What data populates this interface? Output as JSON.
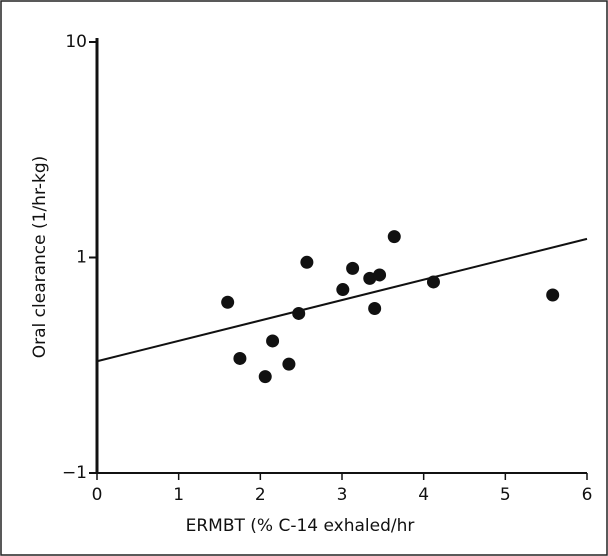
{
  "chart_data": {
    "type": "scatter",
    "x_label": "ERMBT (% C-14 exhaled/hr",
    "y_label": "Oral clearance (1/hr-kg)",
    "x": [
      1.6,
      1.75,
      2.06,
      2.15,
      2.35,
      2.47,
      2.57,
      3.01,
      3.13,
      3.34,
      3.4,
      3.46,
      3.64,
      4.12,
      5.58
    ],
    "values": [
      0.62,
      0.34,
      0.28,
      0.41,
      0.32,
      0.55,
      0.95,
      0.71,
      0.89,
      0.8,
      0.58,
      0.83,
      1.25,
      0.77,
      0.67
    ],
    "color": "#111111",
    "trend_line": {
      "x": [
        0,
        6
      ],
      "values": [
        0.33,
        1.22
      ]
    },
    "xlim": [
      0,
      6
    ],
    "xticks": [
      0,
      1,
      2,
      3,
      4,
      5,
      6
    ],
    "ylim": [
      0.1,
      10
    ],
    "y_scale": "log",
    "yticks": [
      10,
      1,
      {
        "value": 0.1,
        "label": "−1"
      }
    ]
  }
}
